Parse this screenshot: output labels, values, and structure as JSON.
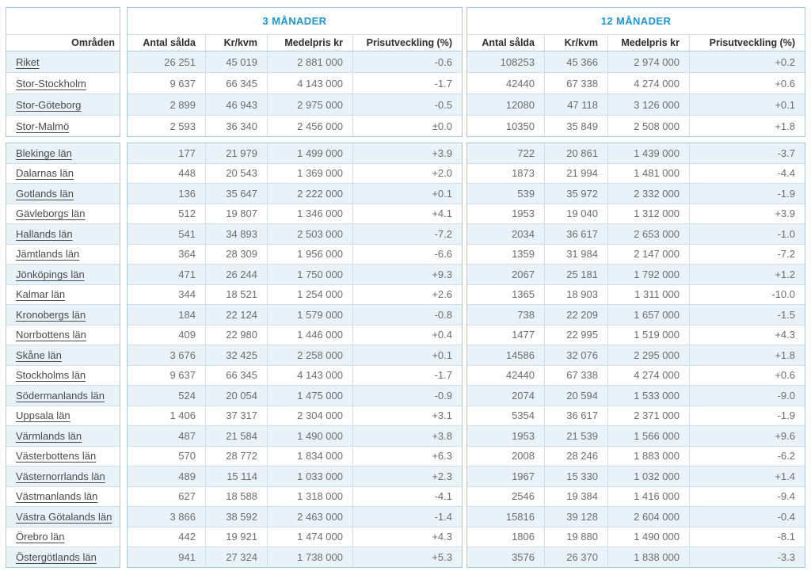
{
  "colors": {
    "accent_blue": "#1d96d2",
    "row_stripe": "#e9f2f9",
    "border": "#a6c8dd",
    "value_text": "#6d6d6d",
    "link_text": "#4a4a4a"
  },
  "chart_data": {
    "type": "table",
    "row_header": "Områden",
    "groups": [
      {
        "label": "3 MÅNADER",
        "columns": [
          "Antal sålda",
          "Kr/kvm",
          "Medelpris kr",
          "Prisutveckling (%)"
        ]
      },
      {
        "label": "12 MÅNADER",
        "columns": [
          "Antal sålda",
          "Kr/kvm",
          "Medelpris kr",
          "Prisutveckling (%)"
        ]
      }
    ],
    "city_rows": [
      {
        "name": "Riket",
        "m3": [
          "26 251",
          "45 019",
          "2 881 000",
          "-0.6"
        ],
        "m12": [
          "108253",
          "45 366",
          "2 974 000",
          "+0.2"
        ]
      },
      {
        "name": "Stor-Stockholm",
        "m3": [
          "9 637",
          "66 345",
          "4 143 000",
          "-1.7"
        ],
        "m12": [
          "42440",
          "67 338",
          "4 274 000",
          "+0.6"
        ]
      },
      {
        "name": "Stor-Göteborg",
        "m3": [
          "2 899",
          "46 943",
          "2 975 000",
          "-0.5"
        ],
        "m12": [
          "12080",
          "47 118",
          "3 126 000",
          "+0.1"
        ]
      },
      {
        "name": "Stor-Malmö",
        "m3": [
          "2 593",
          "36 340",
          "2 456 000",
          "±0.0"
        ],
        "m12": [
          "10350",
          "35 849",
          "2 508 000",
          "+1.8"
        ]
      }
    ],
    "county_rows": [
      {
        "name": "Blekinge län",
        "m3": [
          "177",
          "21 979",
          "1 499 000",
          "+3.9"
        ],
        "m12": [
          "722",
          "20 861",
          "1 439 000",
          "-3.7"
        ]
      },
      {
        "name": "Dalarnas län",
        "m3": [
          "448",
          "20 543",
          "1 369 000",
          "+2.0"
        ],
        "m12": [
          "1873",
          "21 994",
          "1 481 000",
          "-4.4"
        ]
      },
      {
        "name": "Gotlands län",
        "m3": [
          "136",
          "35 647",
          "2 222 000",
          "+0.1"
        ],
        "m12": [
          "539",
          "35 972",
          "2 332 000",
          "-1.9"
        ]
      },
      {
        "name": "Gävleborgs län",
        "m3": [
          "512",
          "19 807",
          "1 346 000",
          "+4.1"
        ],
        "m12": [
          "1953",
          "19 040",
          "1 312 000",
          "+3.9"
        ]
      },
      {
        "name": "Hallands län",
        "m3": [
          "541",
          "34 893",
          "2 503 000",
          "-7.2"
        ],
        "m12": [
          "2034",
          "36 617",
          "2 653 000",
          "-1.0"
        ]
      },
      {
        "name": "Jämtlands län",
        "m3": [
          "364",
          "28 309",
          "1 956 000",
          "-6.6"
        ],
        "m12": [
          "1359",
          "31 984",
          "2 147 000",
          "-7.2"
        ]
      },
      {
        "name": "Jönköpings län",
        "m3": [
          "471",
          "26 244",
          "1 750 000",
          "+9.3"
        ],
        "m12": [
          "2067",
          "25 181",
          "1 792 000",
          "+1.2"
        ]
      },
      {
        "name": "Kalmar län",
        "m3": [
          "344",
          "18 521",
          "1 254 000",
          "+2.6"
        ],
        "m12": [
          "1365",
          "18 903",
          "1 311 000",
          "-10.0"
        ]
      },
      {
        "name": "Kronobergs län",
        "m3": [
          "184",
          "22 124",
          "1 579 000",
          "-0.8"
        ],
        "m12": [
          "738",
          "22 209",
          "1 657 000",
          "-1.5"
        ]
      },
      {
        "name": "Norrbottens län",
        "m3": [
          "409",
          "22 980",
          "1 446 000",
          "+0.4"
        ],
        "m12": [
          "1477",
          "22 995",
          "1 519 000",
          "+4.3"
        ]
      },
      {
        "name": "Skåne län",
        "m3": [
          "3 676",
          "32 425",
          "2 258 000",
          "+0.1"
        ],
        "m12": [
          "14586",
          "32 076",
          "2 295 000",
          "+1.8"
        ]
      },
      {
        "name": "Stockholms län",
        "m3": [
          "9 637",
          "66 345",
          "4 143 000",
          "-1.7"
        ],
        "m12": [
          "42440",
          "67 338",
          "4 274 000",
          "+0.6"
        ]
      },
      {
        "name": "Södermanlands län",
        "m3": [
          "524",
          "20 054",
          "1 475 000",
          "-0.9"
        ],
        "m12": [
          "2074",
          "20 594",
          "1 533 000",
          "-9.0"
        ]
      },
      {
        "name": "Uppsala län",
        "m3": [
          "1 406",
          "37 317",
          "2 304 000",
          "+3.1"
        ],
        "m12": [
          "5354",
          "36 617",
          "2 371 000",
          "-1.9"
        ]
      },
      {
        "name": "Värmlands län",
        "m3": [
          "487",
          "21 584",
          "1 490 000",
          "+3.8"
        ],
        "m12": [
          "1953",
          "21 539",
          "1 566 000",
          "+9.6"
        ]
      },
      {
        "name": "Västerbottens län",
        "m3": [
          "570",
          "28 772",
          "1 834 000",
          "+6.3"
        ],
        "m12": [
          "2008",
          "28 246",
          "1 883 000",
          "-6.2"
        ]
      },
      {
        "name": "Västernorrlands län",
        "m3": [
          "489",
          "15 114",
          "1 033 000",
          "+2.3"
        ],
        "m12": [
          "1967",
          "15 330",
          "1 032 000",
          "+1.4"
        ]
      },
      {
        "name": "Västmanlands län",
        "m3": [
          "627",
          "18 588",
          "1 318 000",
          "-4.1"
        ],
        "m12": [
          "2546",
          "19 384",
          "1 416 000",
          "-9.4"
        ]
      },
      {
        "name": "Västra Götalands län",
        "m3": [
          "3 866",
          "38 592",
          "2 463 000",
          "-1.4"
        ],
        "m12": [
          "15816",
          "39 128",
          "2 604 000",
          "-0.4"
        ]
      },
      {
        "name": "Örebro län",
        "m3": [
          "442",
          "19 921",
          "1 474 000",
          "+4.3"
        ],
        "m12": [
          "1806",
          "19 880",
          "1 490 000",
          "-8.1"
        ]
      },
      {
        "name": "Östergötlands län",
        "m3": [
          "941",
          "27 324",
          "1 738 000",
          "+5.3"
        ],
        "m12": [
          "3576",
          "26 370",
          "1 838 000",
          "-3.3"
        ]
      }
    ]
  }
}
